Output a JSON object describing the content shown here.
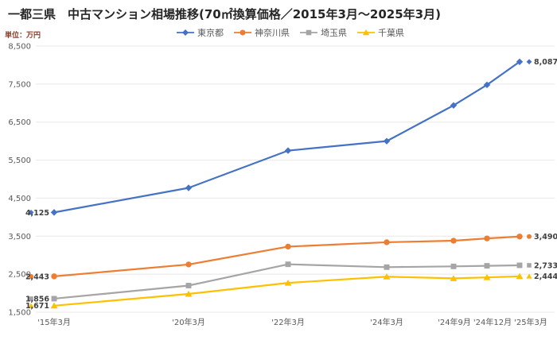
{
  "title": "一都三県　中古マンション相場推移(70㎡換算価格／2015年3月～2025年3月)",
  "unit_label": "単位：万円",
  "colors": {
    "tokyo": "#4472C4",
    "kanagawa": "#ED7D31",
    "saitama": "#A5A5A5",
    "chiba": "#FFC000",
    "grid": "#E8E8E8",
    "axis_text": "#595959",
    "data_label_text": "#404040"
  },
  "chart_data": {
    "type": "line",
    "title": "一都三県　中古マンション相場推移(70㎡換算価格／2015年3月～2025年3月)",
    "ylabel": "単位：万円",
    "categories": [
      "'15年3月",
      "'20年3月",
      "'22年3月",
      "'24年3月",
      "'24年9月",
      "'24年12月",
      "'25年3月"
    ],
    "series": [
      {
        "key": "tokyo",
        "name": "東京都",
        "color": "#4472C4",
        "marker": "diamond",
        "values": [
          4125,
          4770,
          5750,
          6000,
          6940,
          7480,
          8087
        ],
        "first_label": "4,125",
        "last_label": "8,087"
      },
      {
        "key": "kanagawa",
        "name": "神奈川県",
        "color": "#ED7D31",
        "marker": "circle",
        "values": [
          2443,
          2755,
          3225,
          3340,
          3380,
          3440,
          3490
        ],
        "first_label": "2,443",
        "last_label": "3,490"
      },
      {
        "key": "saitama",
        "name": "埼玉県",
        "color": "#A5A5A5",
        "marker": "square",
        "values": [
          1856,
          2200,
          2760,
          2685,
          2705,
          2720,
          2733
        ],
        "first_label": "1,856",
        "last_label": "2,733"
      },
      {
        "key": "chiba",
        "name": "千葉県",
        "color": "#FFC000",
        "marker": "triangle",
        "values": [
          1671,
          1980,
          2270,
          2435,
          2390,
          2415,
          2444
        ],
        "first_label": "1,671",
        "last_label": "2,444"
      }
    ],
    "ylim": [
      1500,
      8500
    ],
    "yticks": [
      8500,
      7500,
      6500,
      5500,
      4500,
      3500,
      2500,
      1500
    ],
    "ytick_labels": [
      "8,500",
      "7,500",
      "6,500",
      "5,500",
      "4,500",
      "3,500",
      "2,500",
      "1,500"
    ],
    "grid": "horizontal-only",
    "legend_position": "top-center",
    "layout": {
      "plot_left": 45,
      "plot_right": 697,
      "plot_top": 58,
      "plot_bottom": 393,
      "point_x": [
        68,
        237,
        362,
        486,
        570,
        612,
        653
      ],
      "xlabel_x": [
        68,
        237,
        362,
        486,
        571,
        619,
        667
      ],
      "xlabel_y": 409,
      "ylabel_right_edge": 39
    }
  }
}
